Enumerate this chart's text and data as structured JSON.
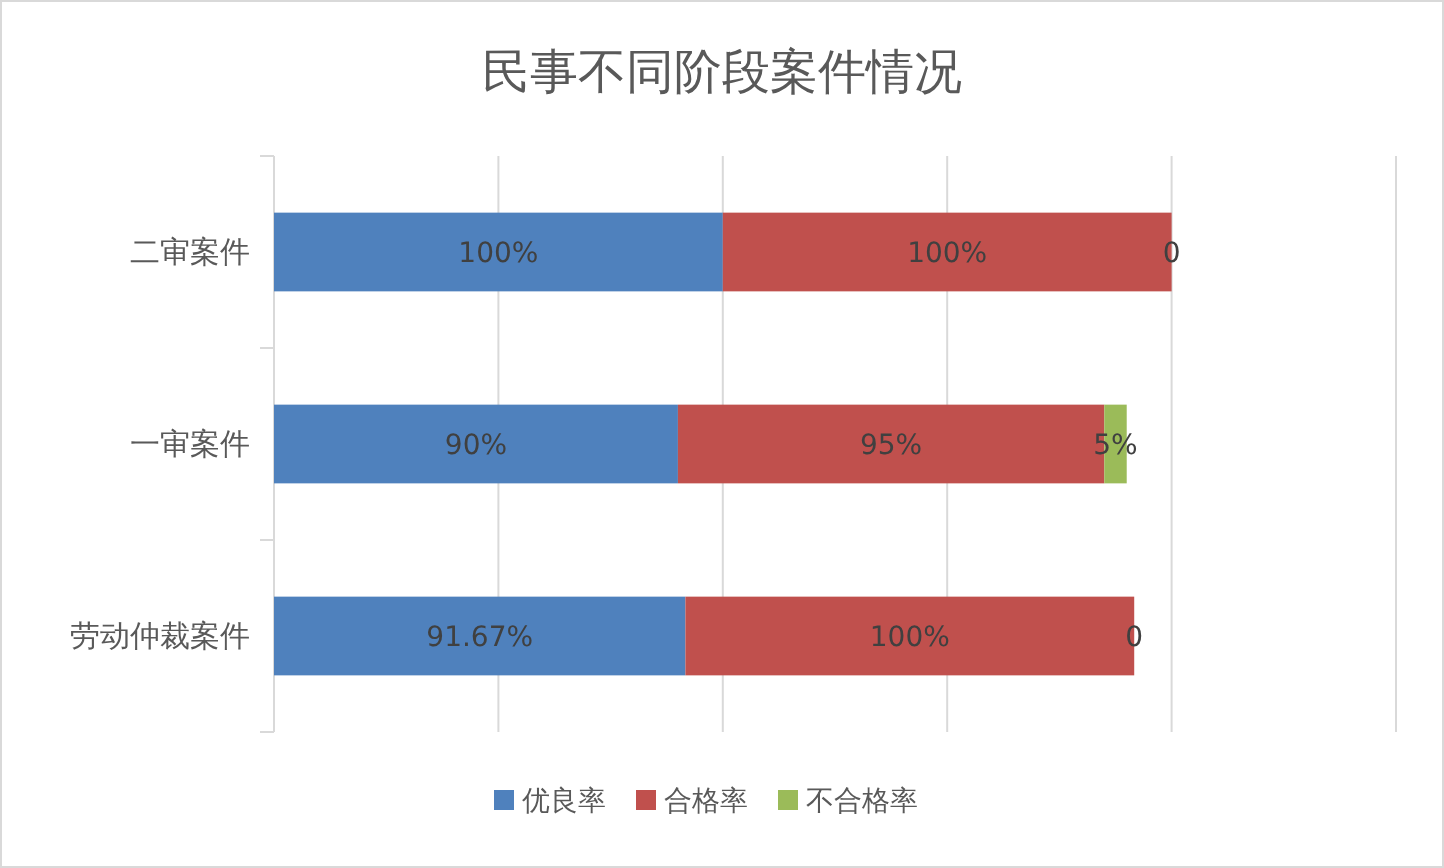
{
  "chart_data": {
    "type": "bar",
    "orientation": "horizontal",
    "stacked": true,
    "title": "民事不同阶段案件情况",
    "categories": [
      "二审案件",
      "一审案件",
      "劳动仲裁案件"
    ],
    "series": [
      {
        "name": "优良率",
        "color": "#4f81bd",
        "values": [
          100,
          90,
          91.67
        ],
        "value_labels": [
          "100%",
          "90%",
          "91.67%"
        ]
      },
      {
        "name": "合格率",
        "color": "#c0504d",
        "values": [
          100,
          95,
          100
        ],
        "value_labels": [
          "100%",
          "95%",
          "100%"
        ]
      },
      {
        "name": "不合格率",
        "color": "#9bbb59",
        "values": [
          0,
          5,
          0
        ],
        "value_labels": [
          "0",
          "5%",
          "0"
        ]
      }
    ],
    "xlim": [
      0,
      250
    ],
    "xticks": [
      {
        "value": 0,
        "label": null
      },
      {
        "value": 50,
        "label": null
      },
      {
        "value": 100,
        "label": null
      },
      {
        "value": 150,
        "label": null
      },
      {
        "value": 200,
        "label": null
      },
      {
        "value": 250,
        "label": null
      }
    ],
    "grid": "x",
    "legend": "bottom",
    "tick_labels": "y"
  }
}
